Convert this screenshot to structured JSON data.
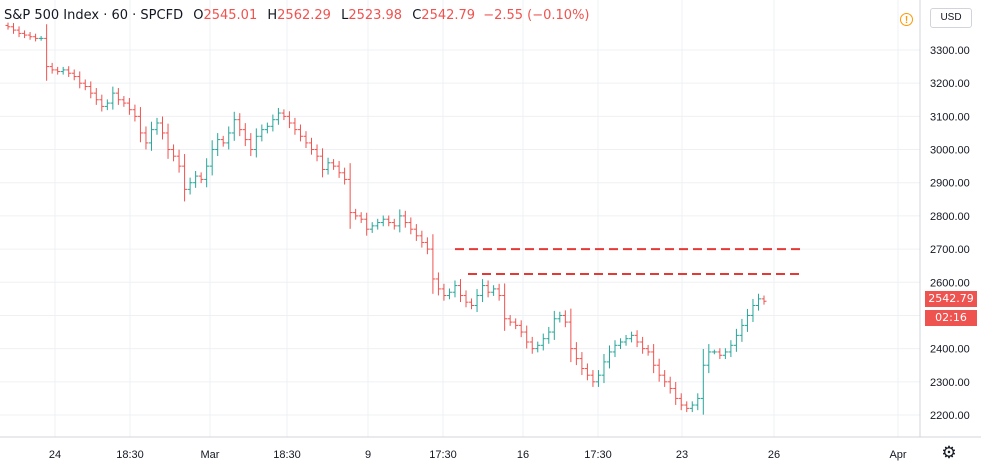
{
  "header": {
    "symbol": "S&P 500 Index · 60 · SPCFD",
    "open_label": "O",
    "open_value": "2545.01",
    "high_label": "H",
    "high_value": "2562.29",
    "low_label": "L",
    "low_value": "2523.98",
    "close_label": "C",
    "close_value": "2542.79",
    "change_value": "−2.55 (−0.10%)"
  },
  "currency": "USD",
  "last_price_tag": "2542.79",
  "countdown_tag": "02:16",
  "colors": {
    "up": "#26a69a",
    "down": "#ef5350",
    "level_line": "#e53935",
    "grid": "#eef0f4",
    "text": "#131722"
  },
  "icons": {
    "alert": "warning-icon",
    "settings": "gear-icon"
  },
  "chart_data": {
    "type": "line",
    "subtype": "ohlc-bars",
    "ylabel_side": "right",
    "ylim": [
      2160,
      3390
    ],
    "y_ticks": [
      2200,
      2300,
      2400,
      2500,
      2600,
      2700,
      2800,
      2900,
      3000,
      3100,
      3200,
      3300
    ],
    "y_tick_labels": [
      "2200.00",
      "2300.00",
      "2400.00",
      "2500.00",
      "2600.00",
      "2700.00",
      "2800.00",
      "2900.00",
      "3000.00",
      "3100.00",
      "3200.00",
      "3300.00"
    ],
    "x_tick_labels": [
      "24",
      "18:30",
      "Mar",
      "18:30",
      "9",
      "17:30",
      "16",
      "17:30",
      "23",
      "26",
      "Apr"
    ],
    "grid": true,
    "horizontal_levels": [
      2700,
      2625
    ],
    "series": [
      {
        "values": [
          3370,
          3360,
          3350,
          3345,
          3340,
          3335,
          3335,
          3250,
          3240,
          3235,
          3240,
          3230,
          3220,
          3200,
          3190,
          3170,
          3150,
          3130,
          3140,
          3170,
          3150,
          3140,
          3120,
          3100,
          3050,
          3020,
          3060,
          3080,
          3050,
          3000,
          2980,
          2950,
          2880,
          2900,
          2920,
          2910,
          2950,
          3000,
          3030,
          3020,
          3050,
          3090,
          3060,
          3030,
          3000,
          3040,
          3060,
          3070,
          3090,
          3110,
          3100,
          3080,
          3060,
          3040,
          3020,
          3000,
          2980,
          2940,
          2960,
          2950,
          2930,
          2910,
          2810,
          2800,
          2790,
          2760,
          2770,
          2780,
          2790,
          2780,
          2770,
          2800,
          2780,
          2760,
          2740,
          2720,
          2700,
          2610,
          2580,
          2560,
          2570,
          2590,
          2560,
          2540,
          2530,
          2560,
          2590,
          2570,
          2580,
          2560,
          2490,
          2480,
          2470,
          2450,
          2420,
          2400,
          2410,
          2430,
          2450,
          2490,
          2500,
          2480,
          2400,
          2370,
          2340,
          2320,
          2300,
          2320,
          2360,
          2390,
          2410,
          2420,
          2430,
          2440,
          2420,
          2400,
          2390,
          2350,
          2320,
          2300,
          2280,
          2250,
          2230,
          2220,
          2230,
          2250,
          2350,
          2390,
          2390,
          2380,
          2390,
          2410,
          2440,
          2470,
          2500,
          2530,
          2550,
          2542.79
        ]
      }
    ]
  }
}
